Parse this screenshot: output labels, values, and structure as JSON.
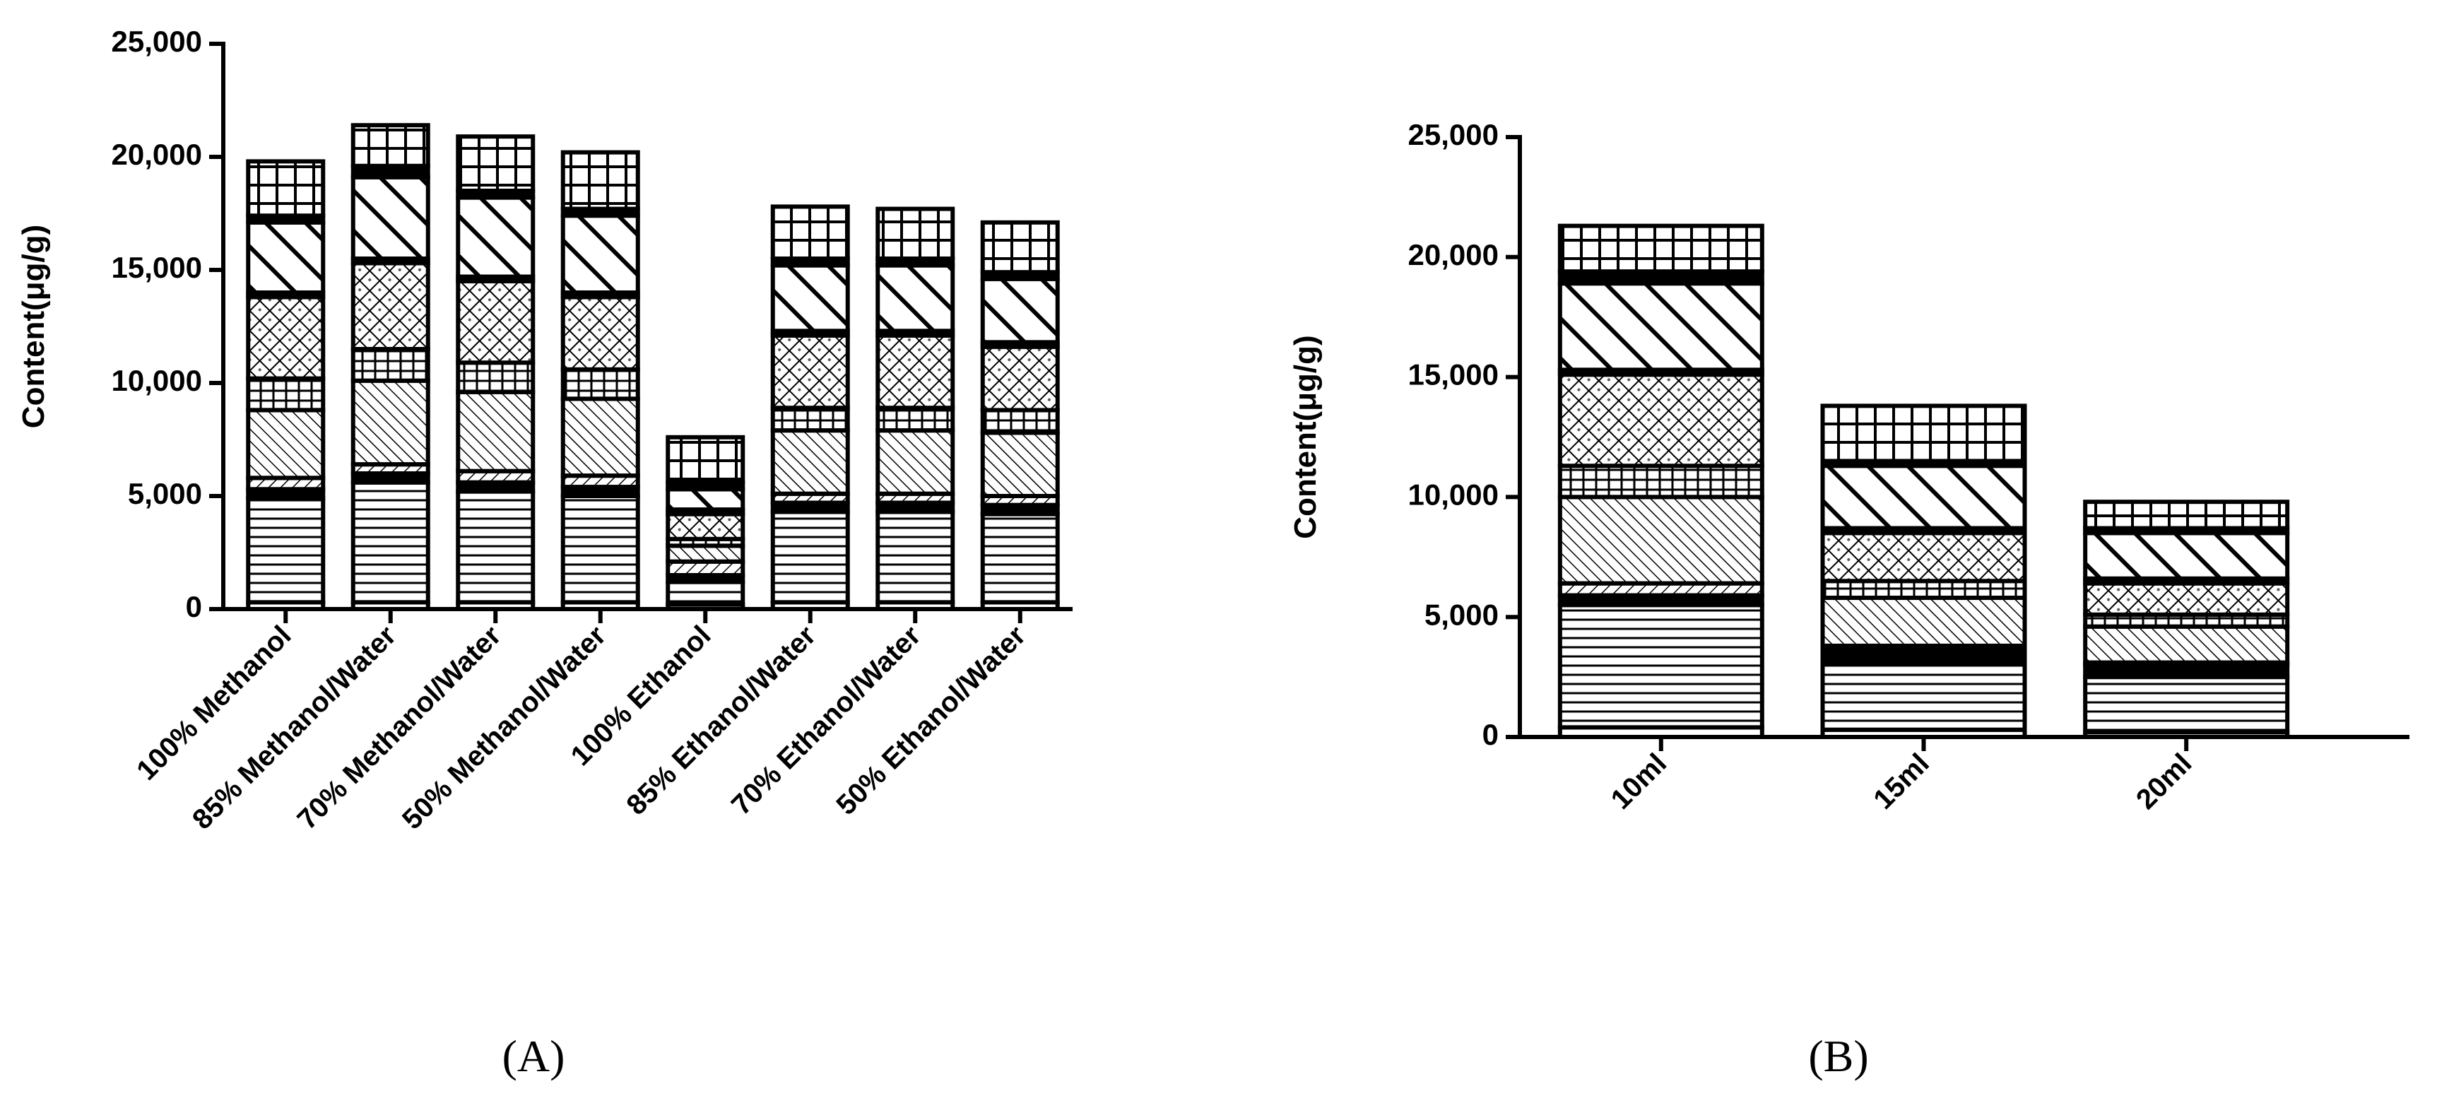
{
  "chart_data": [
    {
      "type": "stacked_bar",
      "panel_label": "(A)",
      "y_label": "Content(μg/g)",
      "categories": [
        "100% Methanol",
        "85% Methanol/Water",
        "70% Methanol/Water",
        "50% Methanol/Water",
        "100% Ethanol",
        "85% Ethanol/Water",
        "70% Ethanol/Water",
        "50% Ethanol/Water"
      ],
      "ylim": [
        0,
        25000
      ],
      "yticks": [
        0,
        {
          "value": 5000,
          "label": "5,000"
        },
        {
          "value": 10000,
          "label": "10,000"
        },
        {
          "value": 15000,
          "label": "15,000"
        },
        {
          "value": 20000,
          "label": "20,000"
        },
        {
          "value": 25000,
          "label": "25,000"
        }
      ],
      "color": "#000000",
      "series": [
        {
          "pattern": "dashes",
          "values": [
            300,
            300,
            300,
            300,
            200,
            300,
            300,
            300
          ]
        },
        {
          "pattern": "hlines",
          "values": [
            4600,
            5300,
            4900,
            4700,
            1000,
            4000,
            4000,
            3900
          ]
        },
        {
          "pattern": "solid",
          "values": [
            400,
            400,
            400,
            400,
            300,
            400,
            400,
            400
          ]
        },
        {
          "pattern": "fdiag",
          "values": [
            500,
            400,
            500,
            500,
            600,
            400,
            400,
            400
          ]
        },
        {
          "pattern": "bdiag",
          "values": [
            3000,
            3700,
            3500,
            3400,
            700,
            2800,
            2800,
            2800
          ]
        },
        {
          "pattern": "brick",
          "values": [
            1400,
            1400,
            1300,
            1300,
            300,
            1000,
            1000,
            1000
          ]
        },
        {
          "pattern": "diamond",
          "values": [
            3600,
            3800,
            3600,
            3200,
            1100,
            3200,
            3200,
            2800
          ]
        },
        {
          "pattern": "solid",
          "values": [
            200,
            200,
            200,
            200,
            200,
            200,
            200,
            200
          ]
        },
        {
          "pattern": "wdiag",
          "values": [
            3100,
            3600,
            3500,
            3400,
            900,
            2900,
            2900,
            2800
          ]
        },
        {
          "pattern": "solid",
          "values": [
            300,
            500,
            300,
            300,
            300,
            300,
            300,
            300
          ]
        },
        {
          "pattern": "grid",
          "values": [
            2400,
            1800,
            2400,
            2500,
            2000,
            2300,
            2200,
            2200
          ]
        }
      ]
    },
    {
      "type": "stacked_bar",
      "panel_label": "(B)",
      "y_label": "Content(μg/g)",
      "categories": [
        "10ml",
        "15ml",
        "20ml"
      ],
      "ylim": [
        0,
        25000
      ],
      "yticks": [
        0,
        {
          "value": 5000,
          "label": "5,000"
        },
        {
          "value": 10000,
          "label": "10,000"
        },
        {
          "value": 15000,
          "label": "15,000"
        },
        {
          "value": 20000,
          "label": "20,000"
        },
        {
          "value": 25000,
          "label": "25,000"
        }
      ],
      "color": "#000000",
      "series": [
        {
          "pattern": "dashes",
          "values": [
            400,
            300,
            200
          ]
        },
        {
          "pattern": "hlines",
          "values": [
            5100,
            2800,
            2300
          ]
        },
        {
          "pattern": "solid",
          "values": [
            400,
            600,
            500
          ]
        },
        {
          "pattern": "fdiag",
          "values": [
            500,
            100,
            100
          ]
        },
        {
          "pattern": "bdiag",
          "values": [
            3600,
            2000,
            1500
          ]
        },
        {
          "pattern": "brick",
          "values": [
            1300,
            700,
            500
          ]
        },
        {
          "pattern": "diamond",
          "values": [
            3800,
            2000,
            1300
          ]
        },
        {
          "pattern": "solid",
          "values": [
            200,
            200,
            200
          ]
        },
        {
          "pattern": "wdiag",
          "values": [
            3600,
            2600,
            1900
          ]
        },
        {
          "pattern": "solid",
          "values": [
            500,
            200,
            200
          ]
        },
        {
          "pattern": "grid",
          "values": [
            1900,
            2300,
            1100
          ]
        }
      ]
    }
  ]
}
